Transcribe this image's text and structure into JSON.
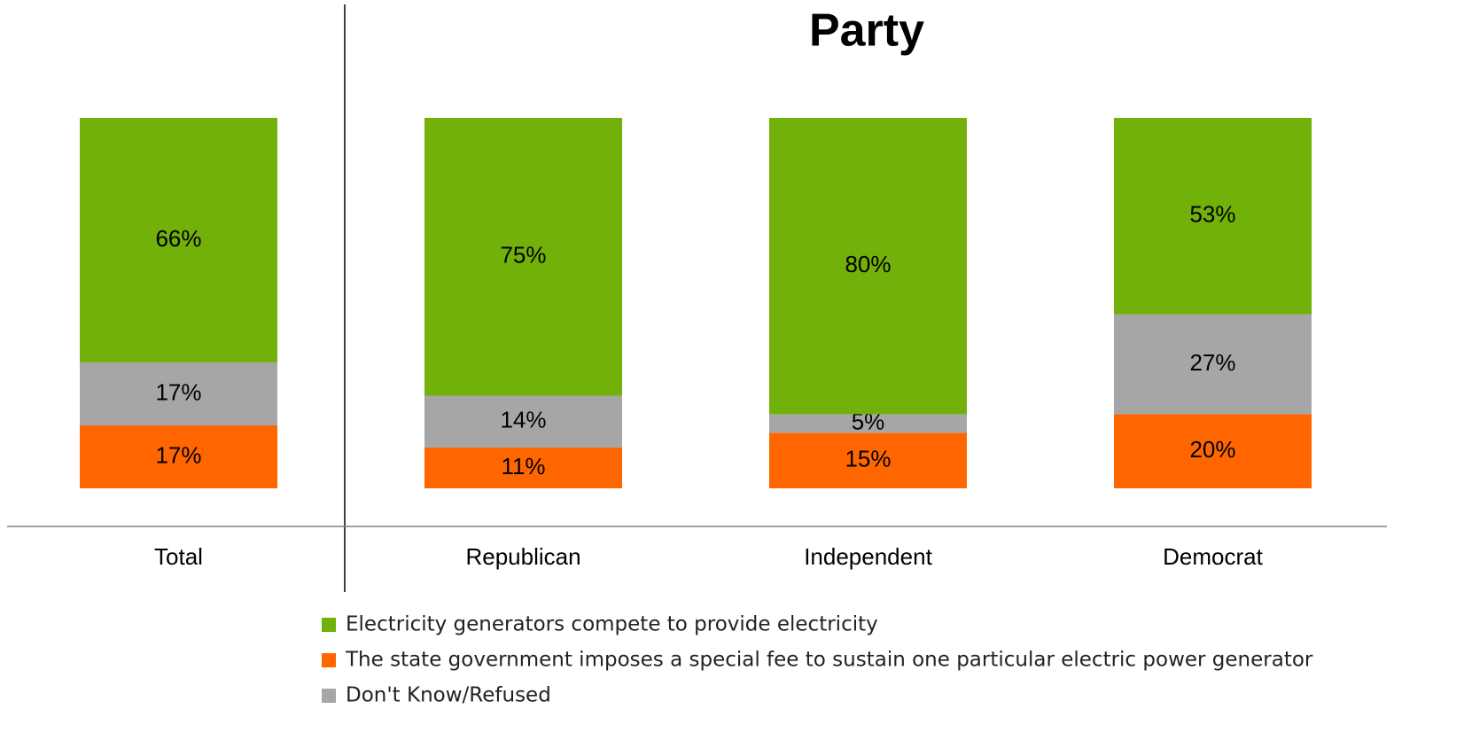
{
  "chart_data": {
    "type": "stacked-bar",
    "title": "Party",
    "categories": [
      "Total",
      "Republican",
      "Independent",
      "Democrat"
    ],
    "series": [
      {
        "name": "Electricity generators compete to provide electricity",
        "color": "#72b00a",
        "values": [
          66,
          75,
          80,
          53
        ],
        "value_labels": [
          "66%",
          "75%",
          "80%",
          "53%"
        ]
      },
      {
        "name": "The state government imposes a special fee to sustain one particular electric power generator",
        "color": "#ff6600",
        "values": [
          17,
          11,
          15,
          20
        ],
        "value_labels": [
          "17%",
          "11%",
          "15%",
          "20%"
        ]
      },
      {
        "name": "Don't Know/Refused",
        "color": "#a6a6a6",
        "values": [
          17,
          14,
          5,
          27
        ],
        "value_labels": [
          "17%",
          "14%",
          "5%",
          "27%"
        ]
      }
    ]
  }
}
